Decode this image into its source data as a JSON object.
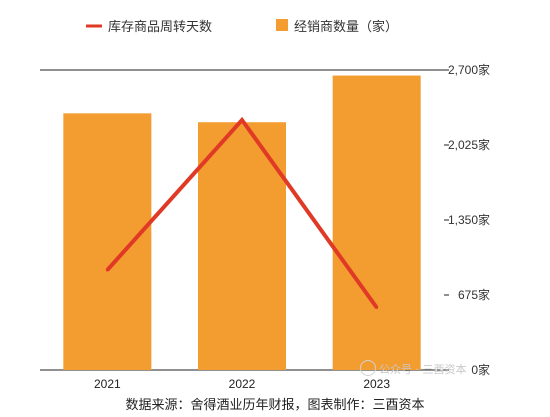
{
  "chart_data": {
    "type": "bar",
    "categories": [
      "2021",
      "2022",
      "2023"
    ],
    "series": [
      {
        "name": "经销商数量（家）",
        "kind": "bar",
        "axis": "right",
        "color": "#F39C2F",
        "values": [
          2310,
          2230,
          2650
        ]
      },
      {
        "name": "库存商品周转天数",
        "kind": "line",
        "axis": "secondary",
        "color": "#E03A26",
        "values": [
          40,
          100,
          25
        ]
      }
    ],
    "y_axis": {
      "position": "right",
      "min": 0,
      "max": 2700,
      "ticks": [
        "0家",
        "675家",
        "1,350家",
        "2,025家",
        "2,700家"
      ]
    },
    "secondary_axis": {
      "min": 0,
      "max": 120
    },
    "legend": {
      "placement": "top"
    },
    "grid": false
  },
  "source_note": "数据来源：舍得酒业历年财报，图表制作：三酉资本",
  "watermark": "公众号 · 三酉资本"
}
